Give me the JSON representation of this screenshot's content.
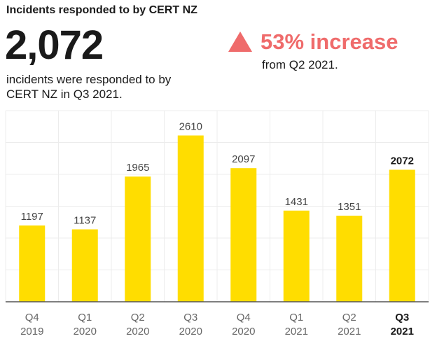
{
  "header": {
    "title": "Incidents responded to by CERT NZ"
  },
  "summary": {
    "big_number": "2,072",
    "caption": "incidents were responded to by CERT NZ in Q3 2021.",
    "increase_label": "53% increase",
    "increase_sub": "from Q2 2021.",
    "accent_color": "#ef6b6b"
  },
  "chart_data": {
    "type": "bar",
    "categories": [
      [
        "Q4",
        "2019"
      ],
      [
        "Q1",
        "2020"
      ],
      [
        "Q2",
        "2020"
      ],
      [
        "Q3",
        "2020"
      ],
      [
        "Q4",
        "2020"
      ],
      [
        "Q1",
        "2021"
      ],
      [
        "Q2",
        "2021"
      ],
      [
        "Q3",
        "2021"
      ]
    ],
    "values": [
      1197,
      1137,
      1965,
      2610,
      2097,
      1431,
      1351,
      2072
    ],
    "value_labels": [
      "1197",
      "1137",
      "1965",
      "2610",
      "2097",
      "1431",
      "1351",
      "2072"
    ],
    "highlight_index": 7,
    "ylim": [
      0,
      3000
    ],
    "grid": true,
    "bar_color": "#ffdd00",
    "title": "",
    "xlabel": "",
    "ylabel": ""
  }
}
